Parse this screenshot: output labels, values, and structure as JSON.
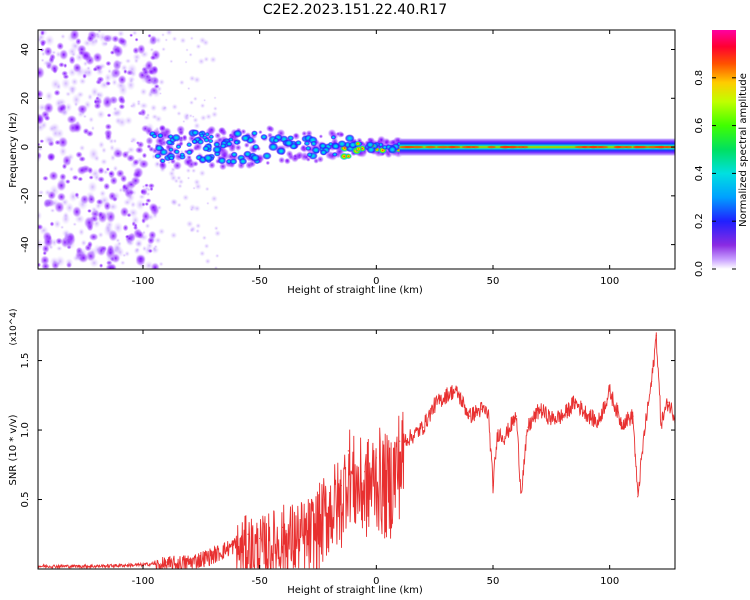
{
  "title": "C2E2.2023.151.22.40.R17",
  "chart_data": [
    {
      "type": "heatmap",
      "xlabel": "Height of straight line (km)",
      "ylabel": "Frequency (Hz)",
      "xlim": [
        -145,
        128
      ],
      "ylim": [
        -50,
        48
      ],
      "xticks": [
        -100,
        -50,
        0,
        50,
        100
      ],
      "yticks": [
        -40,
        -20,
        0,
        20,
        40
      ],
      "ytick_labels": [
        "-40",
        "-20",
        "0",
        "20",
        "40"
      ],
      "colorbar": {
        "label": "Normalized spectral amplitude",
        "range": [
          0,
          1
        ],
        "ticks": [
          0.0,
          0.2,
          0.4,
          0.6,
          0.8
        ],
        "tick_labels": [
          "0.0",
          "0.2",
          "0.4",
          "0.6",
          "0.8"
        ]
      },
      "segments": [
        {
          "x_range": [
            -145,
            -94
          ],
          "freq_spread_hz": 48,
          "amplitude": 0.12,
          "pattern": "scattered noise"
        },
        {
          "x_range": [
            -94,
            -70
          ],
          "freq_spread_hz": 48,
          "amplitude": 0.05,
          "pattern": "sparse faint"
        },
        {
          "x_range": [
            -100,
            -45
          ],
          "freq_spread_hz": 8,
          "amplitude": 0.4,
          "pattern": "broad band"
        },
        {
          "x_range": [
            -45,
            -10
          ],
          "freq_spread_hz": 6,
          "amplitude": 0.45,
          "pattern": "narrowing band"
        },
        {
          "x_range": [
            -10,
            12
          ],
          "freq_spread_hz": 3,
          "amplitude": 0.75,
          "pattern": "narrow band"
        },
        {
          "x_range": [
            12,
            128
          ],
          "freq_spread_hz": 3,
          "amplitude": 0.9,
          "pattern": "steady line at 0 Hz"
        }
      ],
      "grid": false
    },
    {
      "type": "line",
      "xlabel": "Height of straight line (km)",
      "ylabel": "SNR (10 * v/v)",
      "y_multiplier": "(x10^4)",
      "xlim": [
        -145,
        128
      ],
      "ylim": [
        0,
        1.72
      ],
      "xticks": [
        -100,
        -50,
        0,
        50,
        100
      ],
      "yticks": [
        0.5,
        1.0,
        1.5
      ],
      "ytick_labels": [
        "0.5",
        "1.0",
        "1.5"
      ],
      "series": [
        {
          "color": "#e83030",
          "x": [
            -145,
            -120,
            -100,
            -90,
            -80,
            -70,
            -60,
            -55,
            -50,
            -40,
            -30,
            -25,
            -20,
            -15,
            -12,
            -10,
            -5,
            0,
            5,
            10,
            15,
            20,
            25,
            30,
            33,
            35,
            40,
            45,
            48,
            50,
            52,
            55,
            60,
            62,
            65,
            70,
            75,
            80,
            85,
            90,
            95,
            100,
            105,
            110,
            112,
            115,
            118,
            120,
            122,
            125,
            128
          ],
          "y": [
            0.02,
            0.02,
            0.03,
            0.05,
            0.07,
            0.12,
            0.2,
            0.25,
            0.22,
            0.3,
            0.32,
            0.4,
            0.55,
            0.6,
            0.85,
            0.75,
            0.7,
            0.8,
            0.72,
            0.92,
            0.95,
            1.02,
            1.18,
            1.25,
            1.28,
            1.26,
            1.1,
            1.15,
            1.12,
            0.6,
            0.98,
            0.95,
            1.1,
            0.55,
            1.02,
            1.15,
            1.08,
            1.1,
            1.2,
            1.12,
            1.05,
            1.28,
            1.05,
            1.1,
            0.52,
            1.0,
            1.35,
            1.68,
            1.05,
            1.2,
            1.1
          ]
        }
      ],
      "grid": false
    }
  ]
}
